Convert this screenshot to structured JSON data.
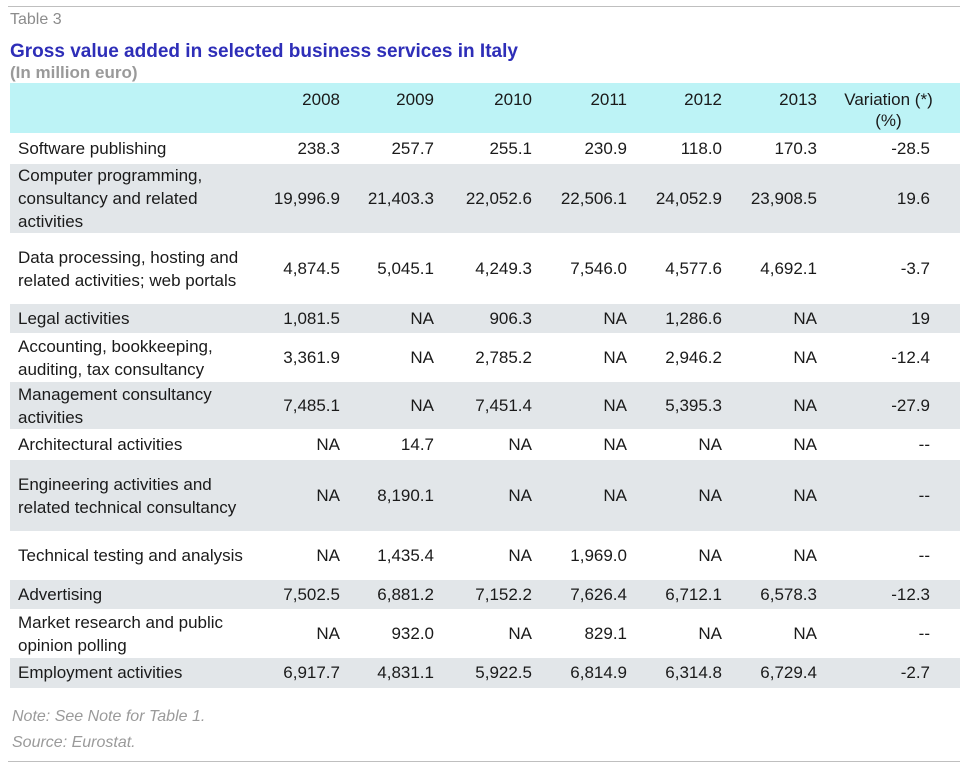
{
  "table_label": "Table 3",
  "title": "Gross value added in selected business services in Italy",
  "subtitle": "(In million euro)",
  "headers": [
    "",
    "2008",
    "2009",
    "2010",
    "2011",
    "2012",
    "2013",
    "Variation (*)",
    "(%)"
  ],
  "rows": [
    {
      "name": "Software publishing",
      "values": [
        "238.3",
        "257.7",
        "255.1",
        "230.9",
        "118.0",
        "170.3"
      ],
      "variation": "-28.5"
    },
    {
      "name": "Computer programming, consultancy and related activities",
      "values": [
        "19,996.9",
        "21,403.3",
        "22,052.6",
        "22,506.1",
        "24,052.9",
        "23,908.5"
      ],
      "variation": "19.6"
    },
    {
      "name": "Data processing, hosting and related activities; web portals",
      "values": [
        "4,874.5",
        "5,045.1",
        "4,249.3",
        "7,546.0",
        "4,577.6",
        "4,692.1"
      ],
      "variation": "-3.7"
    },
    {
      "name": "Legal activities",
      "values": [
        "1,081.5",
        "NA",
        "906.3",
        "NA",
        "1,286.6",
        "NA"
      ],
      "variation": "19"
    },
    {
      "name": "Accounting, bookkeeping, auditing, tax consultancy",
      "values": [
        "3,361.9",
        "NA",
        "2,785.2",
        "NA",
        "2,946.2",
        "NA"
      ],
      "variation": "-12.4"
    },
    {
      "name": "Management consultancy activities",
      "values": [
        "7,485.1",
        "NA",
        "7,451.4",
        "NA",
        "5,395.3",
        "NA"
      ],
      "variation": "-27.9"
    },
    {
      "name": "Architectural activities",
      "values": [
        "NA",
        "14.7",
        "NA",
        "NA",
        "NA",
        "NA"
      ],
      "variation": "--"
    },
    {
      "name": "Engineering activities and related technical consultancy",
      "values": [
        "NA",
        "8,190.1",
        "NA",
        "NA",
        "NA",
        "NA"
      ],
      "variation": "--"
    },
    {
      "name": "Technical testing and analysis",
      "values": [
        "NA",
        "1,435.4",
        "NA",
        "1,969.0",
        "NA",
        "NA"
      ],
      "variation": "--"
    },
    {
      "name": "Advertising",
      "values": [
        "7,502.5",
        "6,881.2",
        "7,152.2",
        "7,626.4",
        "6,712.1",
        "6,578.3"
      ],
      "variation": "-12.3"
    },
    {
      "name": "Market research and public opinion polling",
      "values": [
        "NA",
        "932.0",
        "NA",
        "829.1",
        "NA",
        "NA"
      ],
      "variation": "--"
    },
    {
      "name": "Employment activities",
      "values": [
        "6,917.7",
        "4,831.1",
        "5,922.5",
        "6,814.9",
        "6,314.8",
        "6,729.4"
      ],
      "variation": "-2.7"
    }
  ],
  "notes": [
    "Note: See Note for Table 1.",
    "Source: Eurostat."
  ]
}
